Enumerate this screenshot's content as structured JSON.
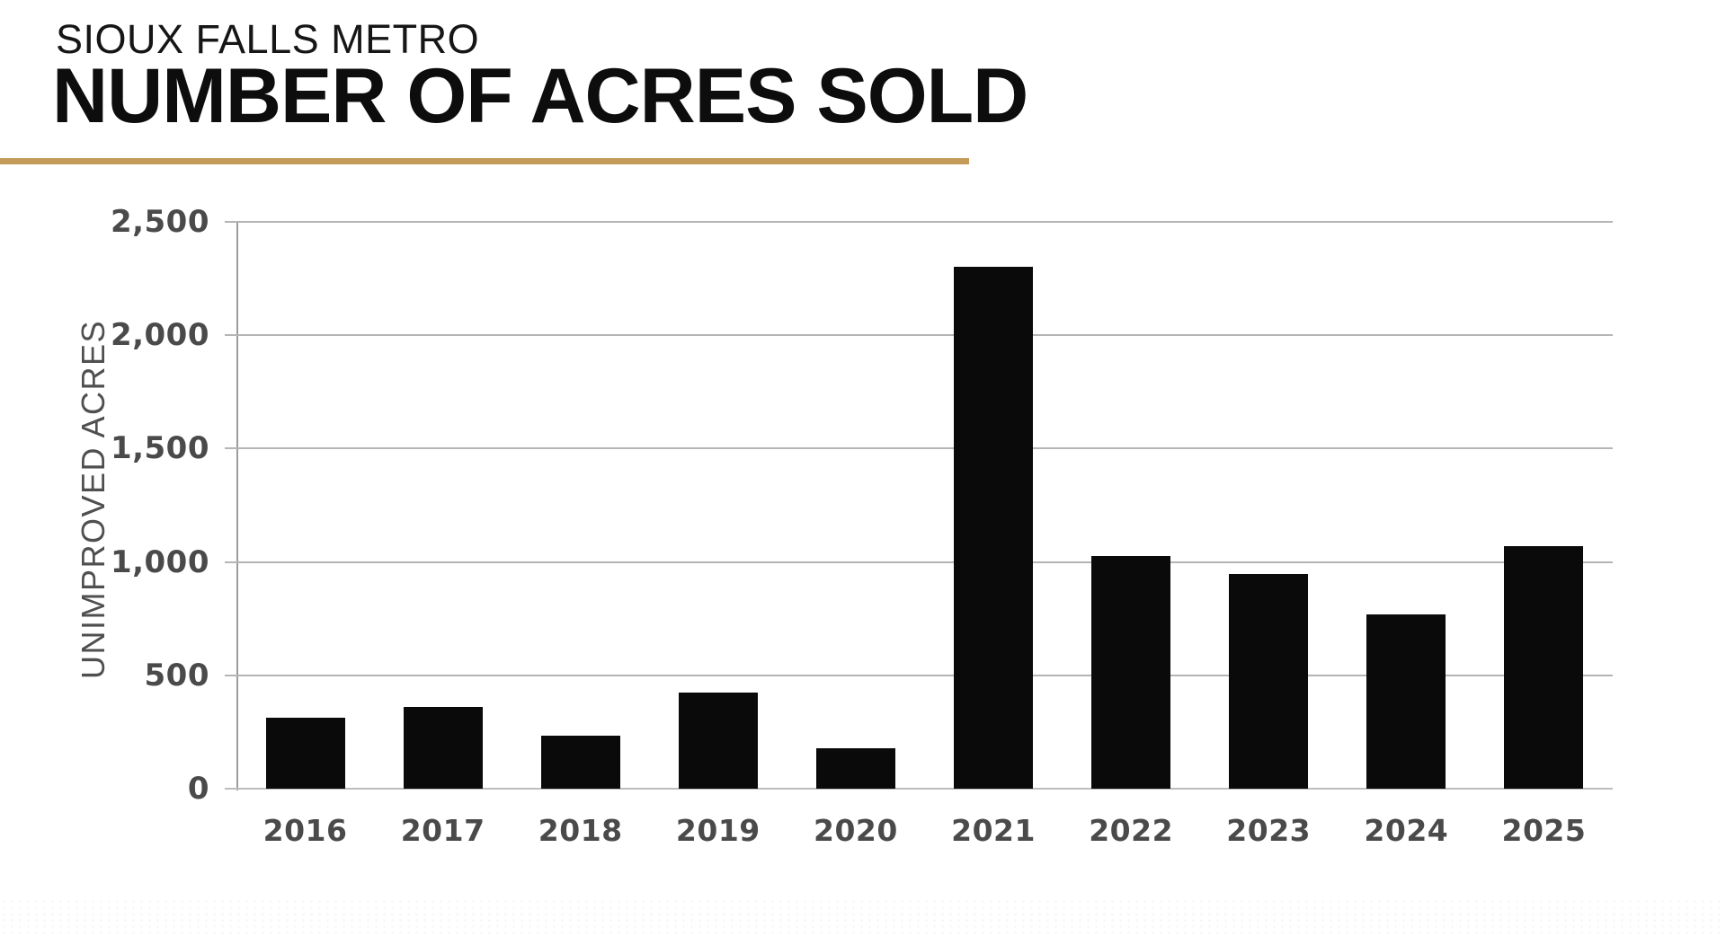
{
  "header": {
    "subtitle": "SIOUX FALLS METRO",
    "title": "NUMBER OF ACRES SOLD"
  },
  "chart_data": {
    "type": "bar",
    "title": "NUMBER OF ACRES SOLD",
    "subtitle": "SIOUX FALLS METRO",
    "categories": [
      "2016",
      "2017",
      "2018",
      "2019",
      "2020",
      "2021",
      "2022",
      "2023",
      "2024",
      "2025"
    ],
    "values": [
      315,
      360,
      232,
      425,
      180,
      2300,
      1025,
      945,
      770,
      1070
    ],
    "xlabel": "",
    "ylabel": "UNIMPROVED ACRES",
    "ylim": [
      0,
      2500
    ],
    "yticks": [
      0,
      500,
      1000,
      1500,
      2000,
      2500
    ],
    "ytick_labels": [
      "0",
      "500",
      "1,000",
      "1,500",
      "2,000",
      "2,500"
    ],
    "grid": "horizontal",
    "legend_position": "none",
    "bar_color": "#0a0a0a",
    "accent_color": "#C49B58",
    "tick_label_color": "#4a4a4a",
    "gridline_color": "#b5b5b5"
  }
}
